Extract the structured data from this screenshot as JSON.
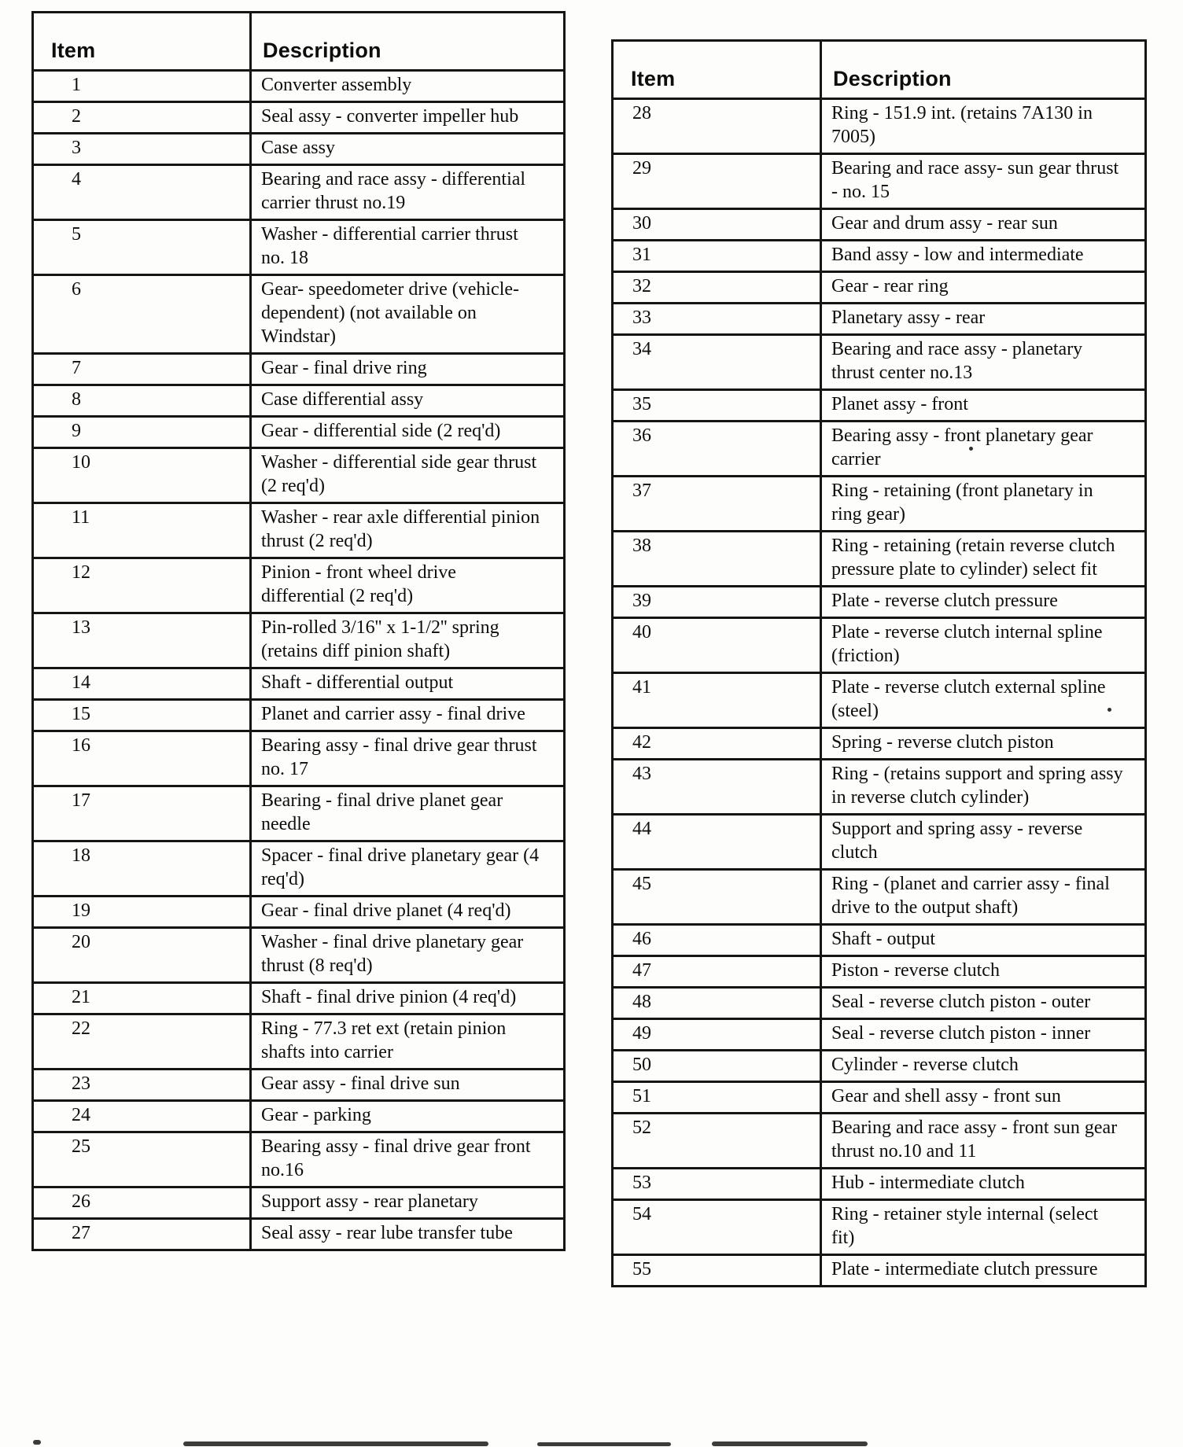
{
  "page": {
    "background": "#fdfdfb",
    "ink": "#0d0d0d"
  },
  "left_table": {
    "headers": {
      "item": "Item",
      "description": "Description"
    },
    "rows": [
      {
        "item": "1",
        "description": "Converter assembly"
      },
      {
        "item": "2",
        "description": "Seal assy - converter impeller hub"
      },
      {
        "item": "3",
        "description": "Case assy"
      },
      {
        "item": "4",
        "description": "Bearing and race assy - differential carrier thrust no.19"
      },
      {
        "item": "5",
        "description": "Washer - differential carrier thrust no. 18"
      },
      {
        "item": "6",
        "description": "Gear- speedometer drive (vehicle-dependent) (not available on Windstar)"
      },
      {
        "item": "7",
        "description": "Gear - final drive ring"
      },
      {
        "item": "8",
        "description": "Case differential assy"
      },
      {
        "item": "9",
        "description": "Gear - differential side (2 req'd)"
      },
      {
        "item": "10",
        "description": "Washer - differential side gear thrust (2 req'd)"
      },
      {
        "item": "11",
        "description": "Washer - rear axle differential pinion thrust (2 req'd)"
      },
      {
        "item": "12",
        "description": "Pinion - front wheel drive differential (2 req'd)"
      },
      {
        "item": "13",
        "description": "Pin-rolled 3/16'' x 1-1/2'' spring (retains diff pinion shaft)"
      },
      {
        "item": "14",
        "description": "Shaft - differential output"
      },
      {
        "item": "15",
        "description": "Planet and carrier assy - final drive"
      },
      {
        "item": "16",
        "description": "Bearing assy - final drive gear thrust no. 17"
      },
      {
        "item": "17",
        "description": "Bearing - final drive planet gear needle"
      },
      {
        "item": "18",
        "description": "Spacer - final drive planetary gear (4 req'd)"
      },
      {
        "item": "19",
        "description": "Gear - final drive planet (4 req'd)"
      },
      {
        "item": "20",
        "description": "Washer - final drive planetary gear thrust (8 req'd)"
      },
      {
        "item": "21",
        "description": "Shaft - final drive pinion (4 req'd)"
      },
      {
        "item": "22",
        "description": "Ring - 77.3 ret ext (retain pinion shafts into carrier"
      },
      {
        "item": "23",
        "description": "Gear assy - final drive sun"
      },
      {
        "item": "24",
        "description": "Gear - parking"
      },
      {
        "item": "25",
        "description": "Bearing assy - final drive gear front no.16"
      },
      {
        "item": "26",
        "description": "Support assy - rear planetary"
      },
      {
        "item": "27",
        "description": "Seal assy - rear lube transfer tube"
      }
    ]
  },
  "right_table": {
    "headers": {
      "item": "Item",
      "description": "Description"
    },
    "rows": [
      {
        "item": "28",
        "description": "Ring - 151.9 int. (retains 7A130 in 7005)"
      },
      {
        "item": "29",
        "description": "Bearing and race assy- sun gear thrust - no. 15"
      },
      {
        "item": "30",
        "description": "Gear and drum assy - rear sun"
      },
      {
        "item": "31",
        "description": "Band assy - low and intermediate"
      },
      {
        "item": "32",
        "description": "Gear - rear ring"
      },
      {
        "item": "33",
        "description": "Planetary assy - rear"
      },
      {
        "item": "34",
        "description": "Bearing and race assy - planetary thrust center no.13"
      },
      {
        "item": "35",
        "description": "Planet assy - front"
      },
      {
        "item": "36",
        "description": "Bearing assy - front planetary gear carrier"
      },
      {
        "item": "37",
        "description": "Ring - retaining (front planetary in ring gear)"
      },
      {
        "item": "38",
        "description": "Ring - retaining (retain reverse clutch pressure plate to cylinder) select fit"
      },
      {
        "item": "39",
        "description": "Plate - reverse clutch pressure"
      },
      {
        "item": "40",
        "description": "Plate - reverse clutch internal spline (friction)"
      },
      {
        "item": "41",
        "description": "Plate - reverse clutch external spline (steel)"
      },
      {
        "item": "42",
        "description": "Spring - reverse clutch piston"
      },
      {
        "item": "43",
        "description": "Ring - (retains support and spring assy in reverse clutch cylinder)"
      },
      {
        "item": "44",
        "description": "Support and spring assy - reverse clutch"
      },
      {
        "item": "45",
        "description": "Ring - (planet and carrier assy - final drive to the output shaft)"
      },
      {
        "item": "46",
        "description": "Shaft - output"
      },
      {
        "item": "47",
        "description": "Piston - reverse clutch"
      },
      {
        "item": "48",
        "description": "Seal - reverse clutch piston - outer"
      },
      {
        "item": "49",
        "description": "Seal - reverse clutch piston - inner"
      },
      {
        "item": "50",
        "description": "Cylinder - reverse clutch"
      },
      {
        "item": "51",
        "description": "Gear and shell assy - front sun"
      },
      {
        "item": "52",
        "description": "Bearing and race assy - front sun gear thrust no.10 and 11"
      },
      {
        "item": "53",
        "description": "Hub - intermediate clutch"
      },
      {
        "item": "54",
        "description": "Ring - retainer style internal (select fit)"
      },
      {
        "item": "55",
        "description": "Plate - intermediate clutch pressure"
      }
    ]
  }
}
